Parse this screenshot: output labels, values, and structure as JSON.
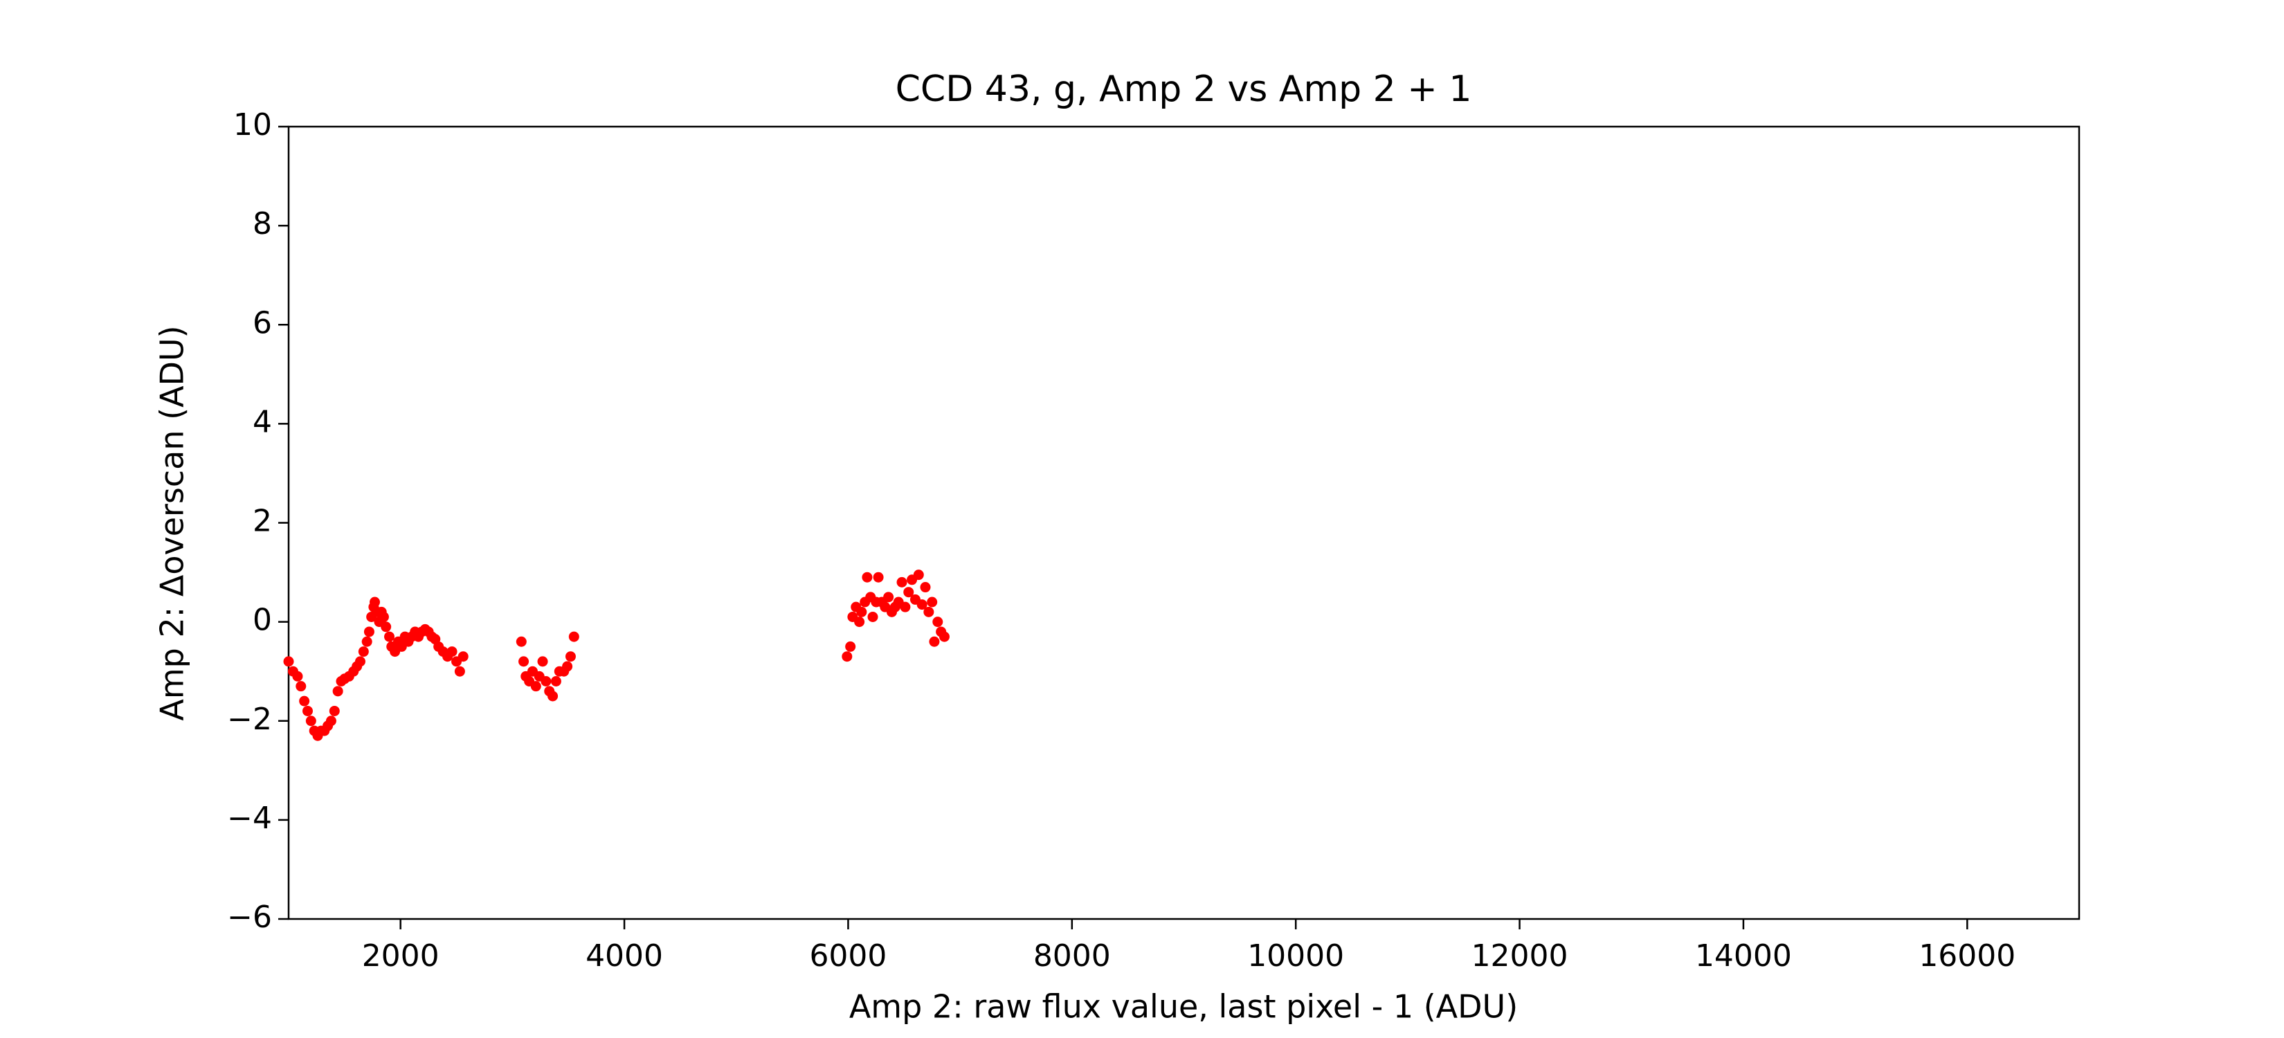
{
  "chart_data": {
    "type": "scatter",
    "title": "CCD 43, g, Amp 2 vs Amp 2 + 1",
    "xlabel": "Amp 2: raw flux value, last pixel - 1 (ADU)",
    "ylabel": "Amp 2: Δoverscan (ADU)",
    "color": "#ff0000",
    "xlim": [
      1000,
      17000
    ],
    "ylim": [
      -6,
      10
    ],
    "xticks": [
      2000,
      4000,
      6000,
      8000,
      10000,
      12000,
      14000,
      16000
    ],
    "yticks": [
      {
        "value": -6,
        "label": "−6"
      },
      {
        "value": -4,
        "label": "−4"
      },
      {
        "value": -2,
        "label": "−2"
      },
      0,
      2,
      4,
      6,
      8,
      10
    ],
    "x": [
      1000,
      1040,
      1080,
      1110,
      1140,
      1170,
      1200,
      1230,
      1260,
      1290,
      1320,
      1350,
      1380,
      1410,
      1440,
      1470,
      1500,
      1540,
      1580,
      1610,
      1640,
      1670,
      1700,
      1720,
      1740,
      1760,
      1770,
      1790,
      1810,
      1830,
      1850,
      1870,
      1900,
      1920,
      1950,
      1980,
      2010,
      2040,
      2070,
      2100,
      2130,
      2160,
      2190,
      2220,
      2250,
      2280,
      2310,
      2340,
      2380,
      2420,
      2460,
      2500,
      2530,
      2560,
      3080,
      3100,
      3120,
      3150,
      3180,
      3210,
      3240,
      3270,
      3300,
      3330,
      3360,
      3390,
      3420,
      3460,
      3490,
      3520,
      3550,
      5990,
      6020,
      6040,
      6070,
      6100,
      6120,
      6150,
      6170,
      6200,
      6220,
      6250,
      6270,
      6300,
      6330,
      6360,
      6390,
      6420,
      6450,
      6480,
      6510,
      6540,
      6570,
      6600,
      6630,
      6660,
      6690,
      6720,
      6750,
      6770,
      6800,
      6830,
      6860
    ],
    "values": [
      -0.8,
      -1.0,
      -1.1,
      -1.3,
      -1.6,
      -1.8,
      -2.0,
      -2.2,
      -2.3,
      -2.2,
      -2.2,
      -2.1,
      -2.0,
      -1.8,
      -1.4,
      -1.2,
      -1.15,
      -1.1,
      -1.0,
      -0.9,
      -0.8,
      -0.6,
      -0.4,
      -0.2,
      0.1,
      0.3,
      0.4,
      0.2,
      0.0,
      0.2,
      0.1,
      -0.1,
      -0.3,
      -0.5,
      -0.6,
      -0.4,
      -0.5,
      -0.3,
      -0.4,
      -0.3,
      -0.2,
      -0.3,
      -0.2,
      -0.15,
      -0.2,
      -0.3,
      -0.35,
      -0.5,
      -0.6,
      -0.7,
      -0.6,
      -0.8,
      -1.0,
      -0.7,
      -0.4,
      -0.8,
      -1.1,
      -1.2,
      -1.0,
      -1.3,
      -1.1,
      -0.8,
      -1.2,
      -1.4,
      -1.5,
      -1.2,
      -1.0,
      -1.0,
      -0.9,
      -0.7,
      -0.3,
      -0.7,
      -0.5,
      0.1,
      0.3,
      0.0,
      0.2,
      0.4,
      0.9,
      0.5,
      0.1,
      0.4,
      0.9,
      0.4,
      0.3,
      0.5,
      0.2,
      0.3,
      0.4,
      0.8,
      0.3,
      0.6,
      0.85,
      0.45,
      0.95,
      0.35,
      0.7,
      0.2,
      0.4,
      -0.4,
      0.0,
      -0.2,
      -0.3
    ]
  }
}
